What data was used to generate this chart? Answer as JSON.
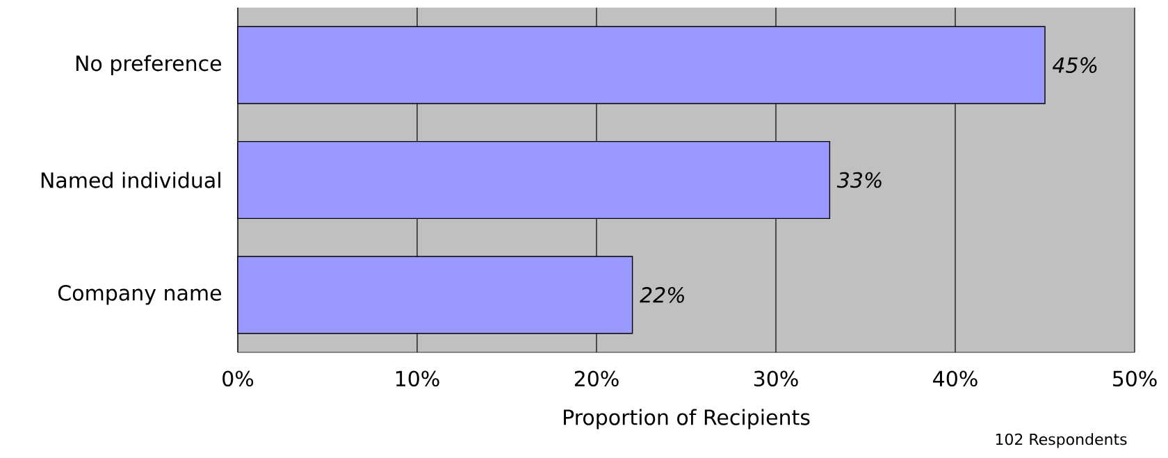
{
  "chart_data": {
    "type": "bar",
    "orientation": "horizontal",
    "xlabel": "Proportion of Recipients",
    "categories": [
      "No preference",
      "Named individual",
      "Company name"
    ],
    "values": [
      45,
      33,
      22
    ],
    "value_labels": [
      "45%",
      "33%",
      "22%"
    ],
    "color": "#9999ff",
    "xlim": [
      0,
      50
    ],
    "xticks": [
      {
        "value": 0,
        "label": "0%"
      },
      {
        "value": 10,
        "label": "10%"
      },
      {
        "value": 20,
        "label": "20%"
      },
      {
        "value": 30,
        "label": "30%"
      },
      {
        "value": 40,
        "label": "40%"
      },
      {
        "value": 50,
        "label": "50%"
      }
    ],
    "grid": "x",
    "annotations": [
      "102 Respondents"
    ]
  }
}
